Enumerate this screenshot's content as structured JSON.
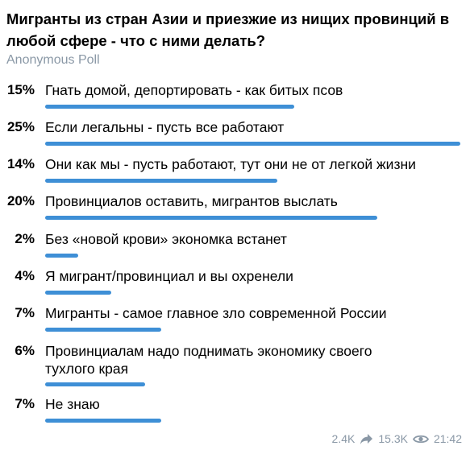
{
  "poll": {
    "question": "Мигранты из стран Азии и приезжие из нищих провинций в любой сфере - что с ними делать?",
    "type_label": "Anonymous Poll",
    "options": [
      {
        "percent_label": "15%",
        "text": "Гнать домой, депортировать - как битых псов",
        "percent": 15
      },
      {
        "percent_label": "25%",
        "text": "Если легальны - пусть все работают",
        "percent": 25
      },
      {
        "percent_label": "14%",
        "text": "Они как мы - пусть работают, тут они не от легкой жизни",
        "percent": 14
      },
      {
        "percent_label": "20%",
        "text": "Провинциалов оставить, мигрантов выслать",
        "percent": 20
      },
      {
        "percent_label": "2%",
        "text": "Без «новой крови» экономка встанет",
        "percent": 2
      },
      {
        "percent_label": "4%",
        "text": "Я мигрант/провинциал и вы охренели",
        "percent": 4
      },
      {
        "percent_label": "7%",
        "text": "Мигранты - самое главное зло современной России",
        "percent": 7
      },
      {
        "percent_label": "6%",
        "text": "Провинциалам надо поднимать экономику своего тухлого края",
        "percent": 6
      },
      {
        "percent_label": "7%",
        "text": "Не знаю",
        "percent": 7
      }
    ],
    "accent_color": "#3e8fd6"
  },
  "footer": {
    "shares": "2.4K",
    "views": "15.3K",
    "time": "21:42",
    "share_icon": "share-icon",
    "views_icon": "eye-icon"
  }
}
